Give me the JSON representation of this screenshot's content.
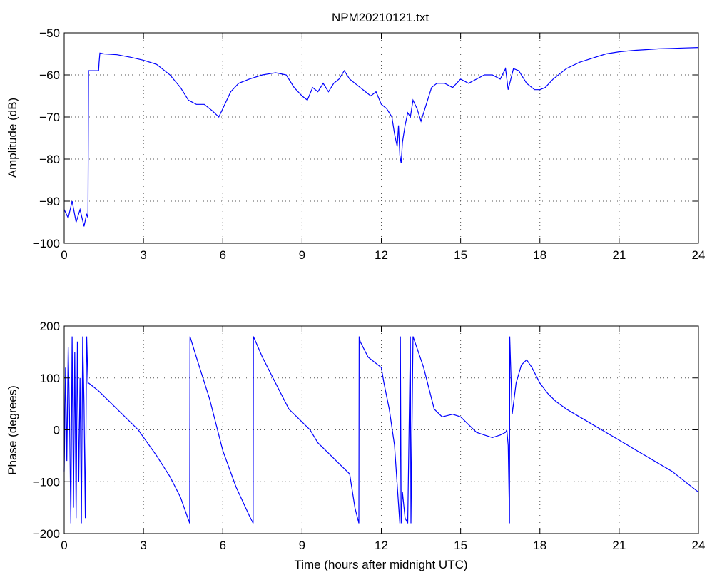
{
  "figure_title": "NPM20210121.txt",
  "colors": {
    "line": "#0000ff",
    "axes": "#000000",
    "grid": "#555555",
    "background": "#ffffff"
  },
  "chart_data": [
    {
      "type": "line",
      "title": "NPM20210121.txt",
      "xlabel": "",
      "ylabel": "Amplitude (dB)",
      "xlim": [
        0,
        24
      ],
      "ylim": [
        -100,
        -50
      ],
      "xticks": [
        "0",
        "3",
        "6",
        "9",
        "12",
        "15",
        "18",
        "21",
        "24"
      ],
      "yticks": [
        "-50",
        "-60",
        "-70",
        "-80",
        "-90",
        "-100"
      ],
      "grid": true,
      "series": [
        {
          "x": [
            0,
            0.15,
            0.3,
            0.45,
            0.6,
            0.75,
            0.85,
            0.9,
            0.92,
            1.0,
            1.1,
            1.3,
            1.32,
            1.35,
            1.5,
            2.0,
            2.5,
            3.0,
            3.5,
            4.0,
            4.4,
            4.7,
            5.0,
            5.3,
            5.6,
            5.85,
            6.0,
            6.3,
            6.6,
            7.0,
            7.5,
            8.0,
            8.4,
            8.7,
            9.0,
            9.2,
            9.4,
            9.6,
            9.8,
            10.0,
            10.2,
            10.4,
            10.6,
            10.8,
            11.0,
            11.2,
            11.4,
            11.6,
            11.8,
            12.0,
            12.2,
            12.4,
            12.5,
            12.6,
            12.65,
            12.7,
            12.75,
            12.8,
            12.9,
            13.0,
            13.1,
            13.2,
            13.35,
            13.5,
            13.7,
            13.9,
            14.1,
            14.4,
            14.7,
            15.0,
            15.3,
            15.6,
            15.9,
            16.2,
            16.5,
            16.7,
            16.8,
            16.9,
            17.0,
            17.2,
            17.5,
            17.8,
            18.0,
            18.2,
            18.5,
            19.0,
            19.5,
            20.0,
            20.5,
            21.0,
            21.5,
            22.0,
            22.5,
            23.0,
            23.5,
            24.0
          ],
          "values": [
            -92,
            -94,
            -90,
            -95,
            -92,
            -96,
            -93,
            -94,
            -59,
            -59,
            -59,
            -59,
            -57,
            -54.8,
            -55,
            -55.2,
            -55.8,
            -56.5,
            -57.5,
            -60,
            -63,
            -66,
            -67,
            -67,
            -68.5,
            -70,
            -68,
            -64,
            -62,
            -61,
            -60,
            -59.5,
            -60,
            -63,
            -65,
            -66,
            -63,
            -64,
            -62,
            -64,
            -62,
            -61,
            -59,
            -61,
            -62,
            -63,
            -64,
            -65,
            -64,
            -67,
            -68,
            -70,
            -74,
            -77,
            -72,
            -79,
            -81,
            -76,
            -72,
            -69,
            -70,
            -66,
            -68,
            -71,
            -67,
            -63,
            -62,
            -62,
            -63,
            -61,
            -62,
            -61,
            -60,
            -60,
            -61,
            -58.5,
            -63.5,
            -61,
            -58.5,
            -59,
            -62,
            -63.5,
            -63.5,
            -63,
            -61,
            -58.5,
            -57,
            -56,
            -55,
            -54.5,
            -54.2,
            -54,
            -53.8,
            -53.7,
            -53.6,
            -53.5
          ]
        }
      ]
    },
    {
      "type": "line",
      "title": "",
      "xlabel": "Time (hours after midnight UTC)",
      "ylabel": "Phase (degrees)",
      "xlim": [
        0,
        24
      ],
      "ylim": [
        -200,
        200
      ],
      "xticks": [
        "0",
        "3",
        "6",
        "9",
        "12",
        "15",
        "18",
        "21",
        "24"
      ],
      "yticks": [
        "200",
        "100",
        "0",
        "-100",
        "-200"
      ],
      "grid": true,
      "series": [
        {
          "x": [
            0,
            0.05,
            0.1,
            0.15,
            0.2,
            0.25,
            0.3,
            0.35,
            0.4,
            0.45,
            0.5,
            0.55,
            0.6,
            0.65,
            0.7,
            0.75,
            0.8,
            0.85,
            0.9,
            0.93,
            1.3,
            2.0,
            2.8,
            3.5,
            4.0,
            4.4,
            4.75,
            4.76,
            5.0,
            5.5,
            6.0,
            6.5,
            7.0,
            7.15,
            7.16,
            7.5,
            8.0,
            8.5,
            9.0,
            9.3,
            9.6,
            10.0,
            10.4,
            10.8,
            11.0,
            11.15,
            11.16,
            11.2,
            11.5,
            12.0,
            12.1,
            12.3,
            12.5,
            12.7,
            12.72,
            12.75,
            12.8,
            12.9,
            13.0,
            13.1,
            13.12,
            13.2,
            13.4,
            13.6,
            13.8,
            14.0,
            14.3,
            14.7,
            15.0,
            15.3,
            15.6,
            15.9,
            16.2,
            16.5,
            16.7,
            16.75,
            16.8,
            16.85,
            16.86,
            16.95,
            17.1,
            17.3,
            17.5,
            17.7,
            18.0,
            18.3,
            18.6,
            19.0,
            19.5,
            20.0,
            20.5,
            21.0,
            21.5,
            22.0,
            22.5,
            23.0,
            23.5,
            24.0
          ],
          "values": [
            -80,
            120,
            -60,
            160,
            30,
            -180,
            180,
            -150,
            150,
            -170,
            170,
            -100,
            100,
            -180,
            180,
            50,
            -170,
            180,
            90,
            90,
            75,
            40,
            0,
            -50,
            -90,
            -130,
            -180,
            180,
            140,
            60,
            -40,
            -110,
            -165,
            -180,
            180,
            140,
            90,
            40,
            15,
            0,
            -25,
            -45,
            -65,
            -85,
            -150,
            -180,
            180,
            170,
            140,
            120,
            90,
            40,
            -30,
            -180,
            180,
            -180,
            -120,
            -170,
            -180,
            180,
            -180,
            180,
            150,
            120,
            80,
            40,
            25,
            30,
            25,
            10,
            -5,
            -10,
            -15,
            -10,
            -5,
            0,
            -30,
            -180,
            180,
            30,
            90,
            125,
            135,
            120,
            90,
            70,
            55,
            40,
            25,
            10,
            -5,
            -20,
            -35,
            -50,
            -65,
            -80,
            -100,
            -120
          ]
        }
      ]
    }
  ]
}
